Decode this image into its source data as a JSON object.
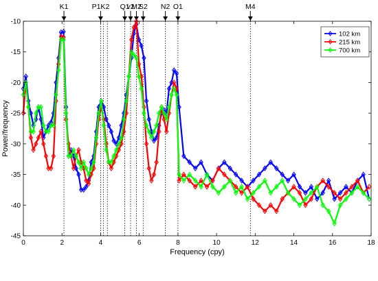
{
  "chart_data": {
    "type": "line",
    "title": "",
    "xlabel": "Frequency (cpy)",
    "ylabel": "Power/frequency",
    "xlim": [
      0,
      18
    ],
    "ylim": [
      -45,
      -10
    ],
    "xticks": [
      0,
      2,
      4,
      6,
      8,
      10,
      12,
      14,
      16,
      18
    ],
    "yticks": [
      -10,
      -15,
      -20,
      -25,
      -30,
      -35,
      -40,
      -45
    ],
    "grid": false,
    "legend_position": "top-right",
    "annotations": [
      {
        "label": "K1",
        "x": 2.1
      },
      {
        "label": "P1K2",
        "x": 4.0
      },
      {
        "label": "Q1",
        "x": 5.25
      },
      {
        "label": "v2",
        "x": 5.55
      },
      {
        "label": "M2",
        "x": 5.85
      },
      {
        "label": "S2",
        "x": 6.2
      },
      {
        "label": "N2",
        "x": 7.35
      },
      {
        "label": "O1",
        "x": 8.0
      },
      {
        "label": "M4",
        "x": 11.75
      }
    ],
    "extra_dotted_lines_x": [
      4.15,
      4.35
    ],
    "series": [
      {
        "name": "102 km",
        "color": "#0000ff",
        "x": [
          0,
          0.13,
          0.26,
          0.39,
          0.52,
          0.65,
          0.78,
          0.91,
          1.04,
          1.17,
          1.3,
          1.43,
          1.56,
          1.69,
          1.82,
          1.95,
          2.08,
          2.21,
          2.34,
          2.47,
          2.6,
          2.73,
          2.86,
          2.99,
          3.12,
          3.25,
          3.38,
          3.51,
          3.64,
          3.77,
          3.9,
          4.03,
          4.16,
          4.29,
          4.42,
          4.55,
          4.68,
          4.81,
          4.94,
          5.07,
          5.2,
          5.33,
          5.46,
          5.59,
          5.72,
          5.85,
          5.98,
          6.11,
          6.24,
          6.37,
          6.5,
          6.63,
          6.76,
          6.89,
          7.02,
          7.15,
          7.28,
          7.41,
          7.54,
          7.67,
          7.8,
          7.93,
          8.06,
          8.3,
          8.6,
          8.9,
          9.2,
          9.5,
          9.8,
          10.1,
          10.4,
          10.7,
          11.0,
          11.3,
          11.6,
          11.9,
          12.2,
          12.5,
          12.8,
          13.1,
          13.4,
          13.7,
          14.0,
          14.3,
          14.6,
          14.9,
          15.2,
          15.5,
          15.8,
          16.1,
          16.4,
          16.7,
          17.0,
          17.3,
          17.6,
          17.9
        ],
        "values": [
          -21,
          -19,
          -23,
          -25,
          -27,
          -26,
          -24,
          -26,
          -29,
          -28,
          -27,
          -26.5,
          -25,
          -20,
          -16,
          -11.8,
          -11.7,
          -24,
          -32,
          -31,
          -32,
          -34,
          -35,
          -37.5,
          -37.5,
          -37,
          -36,
          -33,
          -32,
          -28,
          -24,
          -23,
          -24,
          -26,
          -27,
          -28,
          -29.5,
          -30,
          -29,
          -27,
          -25,
          -22,
          -19,
          -16,
          -12,
          -10.5,
          -13,
          -14,
          -16,
          -23,
          -26,
          -28,
          -29.5,
          -29,
          -27,
          -25,
          -24.5,
          -25,
          -21,
          -20,
          -18,
          -18.5,
          -24,
          -32,
          -33,
          -34,
          -33,
          -35,
          -36,
          -34,
          -33,
          -34,
          -35,
          -36,
          -37,
          -36,
          -35,
          -34,
          -33,
          -34,
          -35,
          -36,
          -35,
          -37,
          -38,
          -37,
          -39,
          -38,
          -36,
          -39,
          -38,
          -37,
          -38,
          -36,
          -35,
          -39
        ]
      },
      {
        "name": "215 km",
        "color": "#ff0000",
        "x": [
          0,
          0.13,
          0.26,
          0.39,
          0.52,
          0.65,
          0.78,
          0.91,
          1.04,
          1.17,
          1.3,
          1.43,
          1.56,
          1.69,
          1.82,
          1.95,
          2.08,
          2.21,
          2.34,
          2.47,
          2.6,
          2.73,
          2.86,
          2.99,
          3.12,
          3.25,
          3.38,
          3.51,
          3.64,
          3.77,
          3.9,
          4.03,
          4.16,
          4.29,
          4.42,
          4.55,
          4.68,
          4.81,
          4.94,
          5.07,
          5.2,
          5.33,
          5.46,
          5.59,
          5.72,
          5.85,
          5.98,
          6.11,
          6.24,
          6.37,
          6.5,
          6.63,
          6.76,
          6.89,
          7.02,
          7.15,
          7.28,
          7.41,
          7.54,
          7.67,
          7.8,
          7.93,
          8.06,
          8.3,
          8.6,
          8.9,
          9.2,
          9.5,
          9.8,
          10.1,
          10.4,
          10.7,
          11.0,
          11.3,
          11.6,
          11.9,
          12.2,
          12.5,
          12.8,
          13.1,
          13.4,
          13.7,
          14.0,
          14.3,
          14.6,
          14.9,
          15.2,
          15.5,
          15.8,
          16.1,
          16.4,
          16.7,
          17.0,
          17.3,
          17.6,
          17.9
        ],
        "values": [
          -25,
          -20,
          -24,
          -29,
          -31,
          -30,
          -29,
          -28,
          -30,
          -32,
          -34,
          -34,
          -32,
          -23,
          -17,
          -12.5,
          -12.6,
          -26,
          -30,
          -32,
          -34,
          -32,
          -31,
          -33,
          -34,
          -36,
          -36.5,
          -35,
          -34,
          -30,
          -26,
          -24,
          -26,
          -30,
          -33,
          -34,
          -33,
          -32,
          -31,
          -30,
          -28,
          -25,
          -19,
          -13,
          -11,
          -10,
          -17,
          -19,
          -24,
          -30,
          -34,
          -36,
          -35,
          -33,
          -28,
          -24,
          -26,
          -28,
          -25,
          -22,
          -20,
          -21,
          -36,
          -35,
          -36,
          -37,
          -36,
          -37,
          -36,
          -34,
          -35,
          -36,
          -37,
          -38,
          -37,
          -39,
          -40,
          -41,
          -40,
          -41,
          -39,
          -38,
          -37,
          -38,
          -40,
          -39,
          -37,
          -36,
          -37,
          -38,
          -39,
          -38,
          -37,
          -36,
          -38,
          -37
        ]
      },
      {
        "name": "700 km",
        "color": "#00ff00",
        "x": [
          0,
          0.13,
          0.26,
          0.39,
          0.52,
          0.65,
          0.78,
          0.91,
          1.04,
          1.17,
          1.3,
          1.43,
          1.56,
          1.69,
          1.82,
          1.95,
          2.08,
          2.21,
          2.34,
          2.47,
          2.6,
          2.73,
          2.86,
          2.99,
          3.12,
          3.25,
          3.38,
          3.51,
          3.64,
          3.77,
          3.9,
          4.03,
          4.16,
          4.29,
          4.42,
          4.55,
          4.68,
          4.81,
          4.94,
          5.07,
          5.2,
          5.33,
          5.46,
          5.59,
          5.72,
          5.85,
          5.98,
          6.11,
          6.24,
          6.37,
          6.5,
          6.63,
          6.76,
          6.89,
          7.02,
          7.15,
          7.28,
          7.41,
          7.54,
          7.67,
          7.8,
          7.93,
          8.06,
          8.3,
          8.6,
          8.9,
          9.2,
          9.5,
          9.8,
          10.1,
          10.4,
          10.7,
          11.0,
          11.3,
          11.6,
          11.9,
          12.2,
          12.5,
          12.8,
          13.1,
          13.4,
          13.7,
          14.0,
          14.3,
          14.6,
          14.9,
          15.2,
          15.5,
          15.8,
          16.1,
          16.4,
          16.7,
          17.0,
          17.3,
          17.6,
          17.9
        ],
        "values": [
          -22,
          -20,
          -24,
          -28,
          -28,
          -25,
          -24,
          -24,
          -27,
          -28,
          -28,
          -27,
          -27,
          -22,
          -18,
          -13,
          -13,
          -25,
          -32,
          -32,
          -31,
          -32,
          -33,
          -34,
          -33,
          -34,
          -35,
          -34,
          -33,
          -29,
          -25,
          -23,
          -27,
          -31,
          -33,
          -33,
          -32,
          -31,
          -30,
          -29,
          -26,
          -23,
          -19,
          -15,
          -15.5,
          -16,
          -19,
          -21,
          -25,
          -27,
          -28,
          -29,
          -28,
          -27,
          -25,
          -24,
          -25,
          -26,
          -24,
          -22,
          -21,
          -22,
          -35,
          -36,
          -35,
          -36,
          -37,
          -35,
          -37,
          -38,
          -37,
          -36,
          -38,
          -37,
          -39,
          -38,
          -37,
          -36,
          -38,
          -37,
          -36,
          -38,
          -39,
          -40,
          -39,
          -38,
          -37,
          -40,
          -41,
          -43,
          -40,
          -39,
          -38,
          -37,
          -38,
          -39
        ]
      }
    ]
  }
}
